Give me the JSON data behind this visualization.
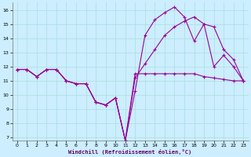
{
  "xlabel": "Windchill (Refroidissement éolien,°C)",
  "bg_color": "#cceeff",
  "line_color": "#990099",
  "xlim": [
    -0.5,
    23.5
  ],
  "ylim": [
    6.8,
    16.5
  ],
  "xticks": [
    0,
    1,
    2,
    3,
    4,
    5,
    6,
    7,
    8,
    9,
    10,
    11,
    12,
    13,
    14,
    15,
    16,
    17,
    18,
    19,
    20,
    21,
    22,
    23
  ],
  "yticks": [
    7,
    8,
    9,
    10,
    11,
    12,
    13,
    14,
    15,
    16
  ],
  "line1_x": [
    0,
    1,
    2,
    3,
    4,
    5,
    6,
    7,
    8,
    9,
    10,
    11,
    12,
    13,
    14,
    15,
    16,
    17,
    18,
    19,
    20,
    21,
    22,
    23
  ],
  "line1_y": [
    11.8,
    11.8,
    11.3,
    11.8,
    11.8,
    11.0,
    10.8,
    10.8,
    9.5,
    9.3,
    9.8,
    6.8,
    10.3,
    14.2,
    15.3,
    15.8,
    16.2,
    15.5,
    13.8,
    15.0,
    12.0,
    12.8,
    12.0,
    11.0
  ],
  "line2_x": [
    0,
    1,
    2,
    3,
    4,
    5,
    6,
    7,
    8,
    9,
    10,
    11,
    12,
    13,
    14,
    15,
    16,
    17,
    18,
    19,
    20,
    21,
    22,
    23
  ],
  "line2_y": [
    11.8,
    11.8,
    11.3,
    11.8,
    11.8,
    11.0,
    10.8,
    10.8,
    9.5,
    9.3,
    9.8,
    6.8,
    11.2,
    12.2,
    13.2,
    14.2,
    14.8,
    15.2,
    15.5,
    15.0,
    14.8,
    13.2,
    12.5,
    11.0
  ],
  "line3_x": [
    0,
    1,
    2,
    3,
    4,
    5,
    6,
    7,
    8,
    9,
    10,
    11,
    12,
    13,
    14,
    15,
    16,
    17,
    18,
    19,
    20,
    21,
    22,
    23
  ],
  "line3_y": [
    11.8,
    11.8,
    11.3,
    11.8,
    11.8,
    11.0,
    10.8,
    10.8,
    9.5,
    9.3,
    9.8,
    6.8,
    11.5,
    11.5,
    11.5,
    11.5,
    11.5,
    11.5,
    11.5,
    11.3,
    11.2,
    11.1,
    11.0,
    11.0
  ]
}
